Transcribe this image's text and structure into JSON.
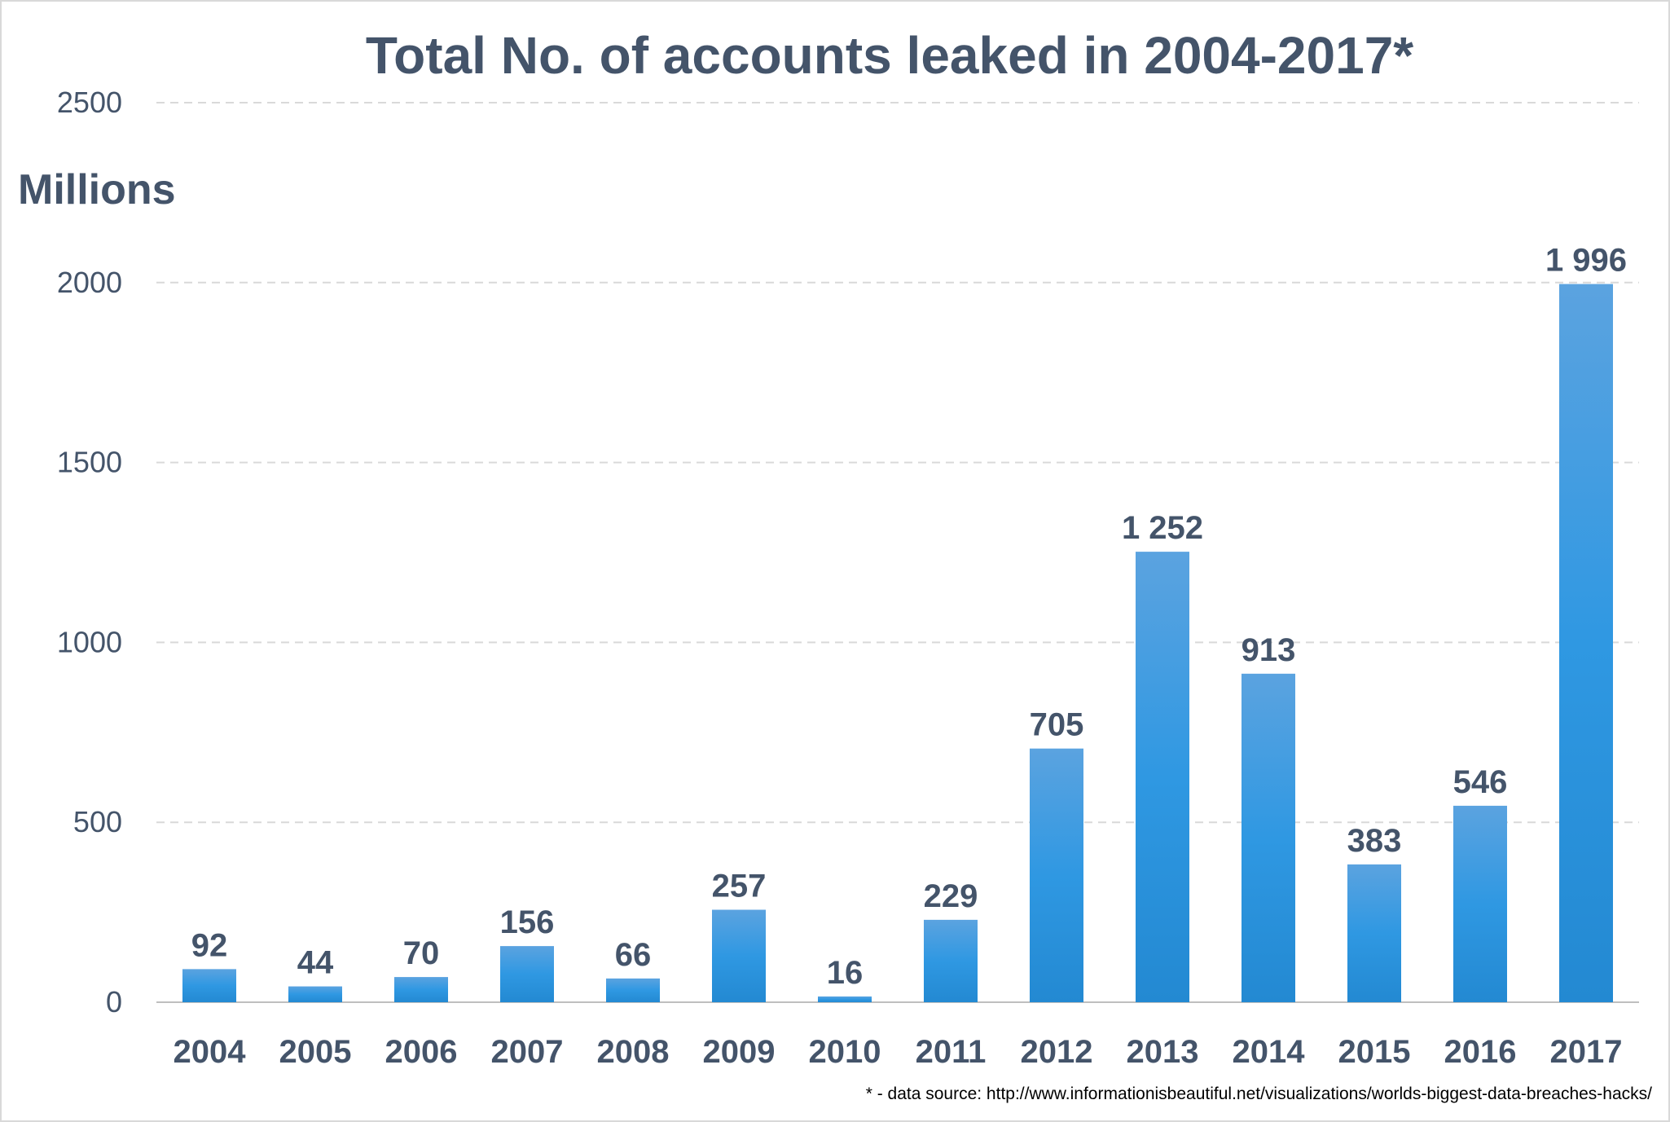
{
  "chart_data": {
    "type": "bar",
    "title": "Total No. of accounts leaked in 2004-2017*",
    "ylabel": "Millions",
    "xlabel": "",
    "categories": [
      "2004",
      "2005",
      "2006",
      "2007",
      "2008",
      "2009",
      "2010",
      "2011",
      "2012",
      "2013",
      "2014",
      "2015",
      "2016",
      "2017"
    ],
    "values": [
      92,
      44,
      70,
      156,
      66,
      257,
      16,
      229,
      705,
      1252,
      913,
      383,
      546,
      1996
    ],
    "value_labels": [
      "92",
      "44",
      "70",
      "156",
      "66",
      "257",
      "16",
      "229",
      "705",
      "1 252",
      "913",
      "383",
      "546",
      "1 996"
    ],
    "ylim": [
      0,
      2500
    ],
    "yticks": [
      0,
      500,
      1000,
      1500,
      2000,
      2500
    ],
    "ytick_labels": [
      "0",
      "500",
      "1000",
      "1500",
      "2000",
      "2500"
    ],
    "grid": true,
    "legend": "none",
    "footnote": "* - data source: http://www.informationisbeautiful.net/visualizations/worlds-biggest-data-breaches-hacks/"
  },
  "colors": {
    "bar_top": "#5ba3e0",
    "bar_mid": "#2f98e2",
    "bar_bottom": "#2389d2",
    "text": "#44546a",
    "grid": "#d9d9d9"
  }
}
